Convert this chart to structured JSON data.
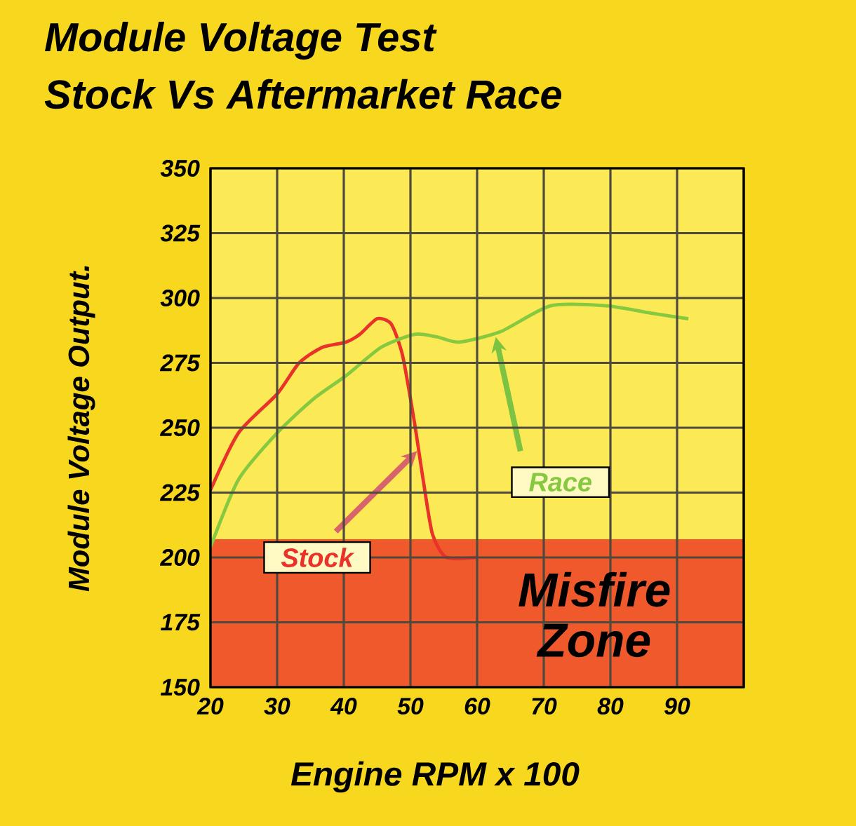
{
  "chart_data": {
    "type": "line",
    "title": "Module Voltage Test",
    "subtitle": "Stock Vs Aftermarket Race",
    "xlabel": "Engine RPM x 100",
    "ylabel": "Module Voltage Output.",
    "xlim": [
      20,
      100
    ],
    "xticks": [
      20,
      30,
      40,
      50,
      60,
      70,
      80,
      90,
      {
        "value": 100,
        "label": null
      }
    ],
    "ylim": [
      150,
      350
    ],
    "yticks": [
      150,
      175,
      200,
      225,
      250,
      275,
      300,
      325,
      350
    ],
    "grid": true,
    "marker": "none",
    "series": [
      {
        "name": "Stock",
        "color": "#e8322a",
        "x": [
          20,
          24.2,
          30,
          33.3,
          36.8,
          40.3,
          42.4,
          45,
          47.1,
          48.8,
          50.6,
          51.9,
          53.3,
          55.4,
          60
        ],
        "values": [
          226,
          248,
          263,
          275,
          281,
          283,
          286,
          292,
          290,
          278,
          252,
          230,
          209,
          200,
          200
        ]
      },
      {
        "name": "Race",
        "color": "#86c940",
        "x": [
          20,
          24.2,
          30,
          35.4,
          40.3,
          45.6,
          50.6,
          54,
          57.3,
          63.5,
          71,
          79.4,
          86.5,
          91.7
        ],
        "values": [
          204,
          230,
          248,
          261,
          270,
          281,
          286,
          285,
          283,
          287,
          297,
          297,
          294,
          292
        ]
      }
    ],
    "bands": [
      {
        "axis": "y",
        "from": 150,
        "to": 207,
        "label": "Misfire Zone",
        "color": "#f0592b"
      }
    ]
  }
}
